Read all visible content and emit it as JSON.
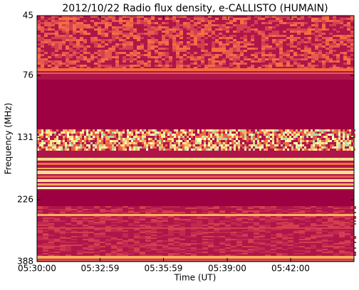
{
  "chart_data": {
    "type": "spectrogram",
    "title": "2012/10/22  Radio flux density, e-CALLISTO (HUMAIN)",
    "x_label": "Time (UT)",
    "y_label": "Frequency (MHz)",
    "xlim": [
      "05:30:00",
      "05:45:00"
    ],
    "xticks": [
      "05:30:00",
      "05:32:59",
      "05:35:59",
      "05:39:00",
      "05:42:00"
    ],
    "ylim": [
      45,
      388
    ],
    "yticks": [
      45,
      76,
      131,
      226,
      388
    ],
    "y_log": true,
    "y_inverted": true
  }
}
